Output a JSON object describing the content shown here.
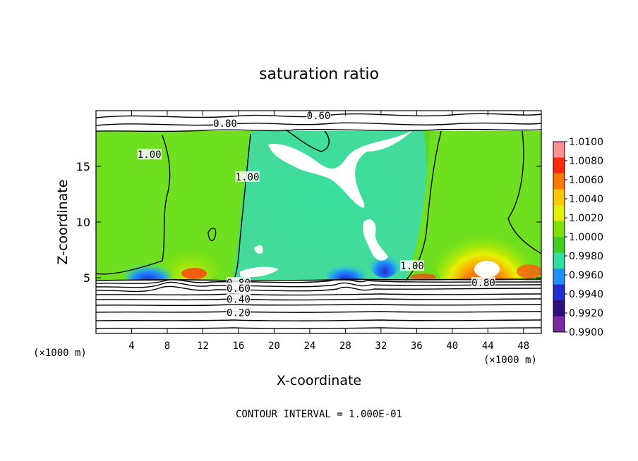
{
  "chart_data": {
    "type": "heatmap",
    "title": "saturation ratio",
    "xlabel": "X-coordinate",
    "ylabel": "Z-coordinate",
    "x_unit": "(×1000 m)",
    "z_unit": "(×1000 m)",
    "xlim": [
      0,
      50
    ],
    "ylim": [
      0,
      20
    ],
    "x_ticks": [
      4,
      8,
      12,
      16,
      20,
      24,
      28,
      32,
      36,
      40,
      44,
      48
    ],
    "y_ticks": [
      5,
      10,
      15
    ],
    "footer": "CONTOUR INTERVAL = 1.000E-01",
    "colorbar": {
      "levels": [
        "1.0100",
        "1.0080",
        "1.0060",
        "1.0040",
        "1.0020",
        "1.0000",
        "0.9980",
        "0.9960",
        "0.9940",
        "0.9920",
        "0.9900"
      ],
      "colors": [
        "#ff9090",
        "#ff2a10",
        "#ff7800",
        "#ffc800",
        "#e0f000",
        "#7fe000",
        "#40d020",
        "#30e0a0",
        "#2090ff",
        "#2030d0",
        "#301080",
        "#7a2aa0"
      ]
    },
    "contour_labels": [
      {
        "text": "0.60",
        "x": 25,
        "z": 19.5
      },
      {
        "text": "0.80",
        "x": 14.5,
        "z": 18.8
      },
      {
        "text": "1.00",
        "x": 6,
        "z": 16
      },
      {
        "text": "1.00",
        "x": 17,
        "z": 14
      },
      {
        "text": "1.00",
        "x": 35.5,
        "z": 6
      },
      {
        "text": "0.80",
        "x": 43.5,
        "z": 4.5
      },
      {
        "text": "0.80",
        "x": 16,
        "z": 4.5
      },
      {
        "text": "0.60",
        "x": 16,
        "z": 4
      },
      {
        "text": "0.40",
        "x": 16,
        "z": 3
      },
      {
        "text": "0.20",
        "x": 16,
        "z": 1.8
      }
    ]
  },
  "colors": {
    "frame": "#000000",
    "background": "#ffffff"
  }
}
